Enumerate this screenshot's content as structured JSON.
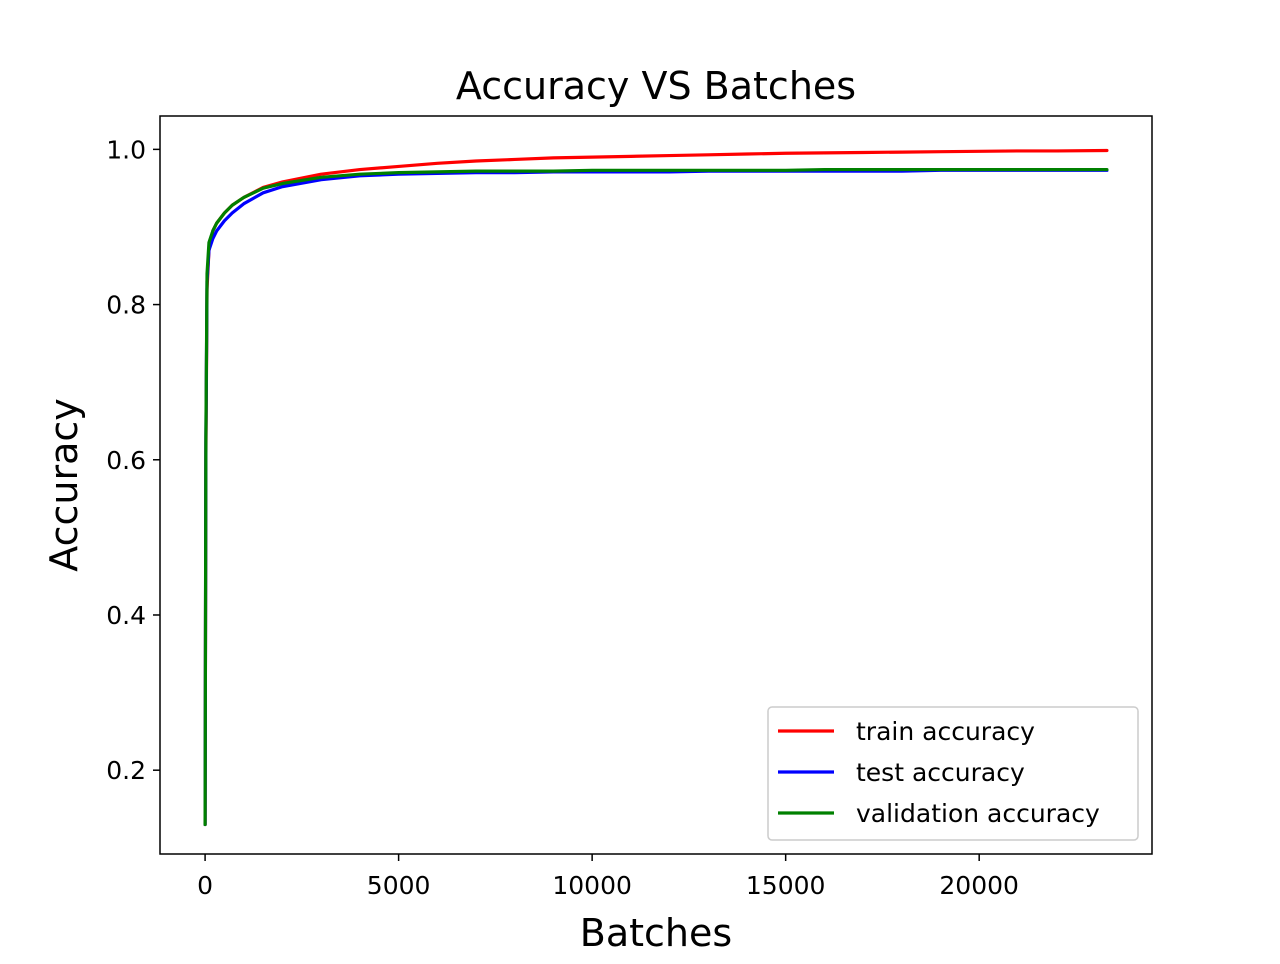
{
  "chart_data": {
    "type": "line",
    "title": "Accuracy VS Batches",
    "xlabel": "Batches",
    "ylabel": "Accuracy",
    "xlim": [
      -1165,
      24465
    ],
    "ylim": [
      0.092,
      1.043
    ],
    "xticks": [
      0,
      5000,
      10000,
      15000,
      20000
    ],
    "xtick_labels": [
      "0",
      "5000",
      "10000",
      "15000",
      "20000"
    ],
    "yticks": [
      0.2,
      0.4,
      0.6,
      0.8,
      1.0
    ],
    "ytick_labels": [
      "0.2",
      "0.4",
      "0.6",
      "0.8",
      "1.0"
    ],
    "grid": false,
    "legend_position": "lower-right",
    "series": [
      {
        "name": "train accuracy",
        "color": "#ff0000",
        "x": [
          0,
          20,
          50,
          100,
          200,
          300,
          500,
          700,
          1000,
          1500,
          2000,
          3000,
          4000,
          5000,
          6000,
          7000,
          8000,
          9000,
          10000,
          11000,
          12000,
          13000,
          14000,
          15000,
          16000,
          17000,
          18000,
          19000,
          20000,
          21000,
          22000,
          23300
        ],
        "y": [
          0.13,
          0.6,
          0.82,
          0.87,
          0.895,
          0.905,
          0.918,
          0.928,
          0.938,
          0.951,
          0.958,
          0.968,
          0.974,
          0.978,
          0.982,
          0.985,
          0.987,
          0.989,
          0.99,
          0.991,
          0.992,
          0.993,
          0.994,
          0.995,
          0.9955,
          0.996,
          0.9965,
          0.997,
          0.9975,
          0.998,
          0.998,
          0.9985
        ]
      },
      {
        "name": "test accuracy",
        "color": "#0000ff",
        "x": [
          0,
          20,
          50,
          100,
          200,
          300,
          500,
          700,
          1000,
          1500,
          2000,
          3000,
          4000,
          5000,
          6000,
          7000,
          8000,
          9000,
          10000,
          11000,
          12000,
          13000,
          14000,
          15000,
          16000,
          17000,
          18000,
          19000,
          20000,
          21000,
          22000,
          23300
        ],
        "y": [
          0.13,
          0.62,
          0.83,
          0.87,
          0.885,
          0.895,
          0.908,
          0.918,
          0.93,
          0.944,
          0.952,
          0.961,
          0.966,
          0.968,
          0.969,
          0.97,
          0.97,
          0.971,
          0.971,
          0.971,
          0.971,
          0.972,
          0.972,
          0.972,
          0.972,
          0.972,
          0.972,
          0.973,
          0.973,
          0.973,
          0.973,
          0.973
        ]
      },
      {
        "name": "validation accuracy",
        "color": "#008000",
        "x": [
          0,
          20,
          50,
          100,
          200,
          300,
          500,
          700,
          1000,
          1500,
          2000,
          3000,
          4000,
          5000,
          6000,
          7000,
          8000,
          9000,
          10000,
          11000,
          12000,
          13000,
          14000,
          15000,
          16000,
          17000,
          18000,
          19000,
          20000,
          21000,
          22000,
          23300
        ],
        "y": [
          0.13,
          0.63,
          0.84,
          0.88,
          0.895,
          0.905,
          0.918,
          0.928,
          0.938,
          0.95,
          0.956,
          0.964,
          0.968,
          0.97,
          0.971,
          0.972,
          0.972,
          0.972,
          0.973,
          0.973,
          0.973,
          0.973,
          0.973,
          0.973,
          0.974,
          0.974,
          0.974,
          0.974,
          0.974,
          0.974,
          0.974,
          0.974
        ]
      }
    ]
  }
}
